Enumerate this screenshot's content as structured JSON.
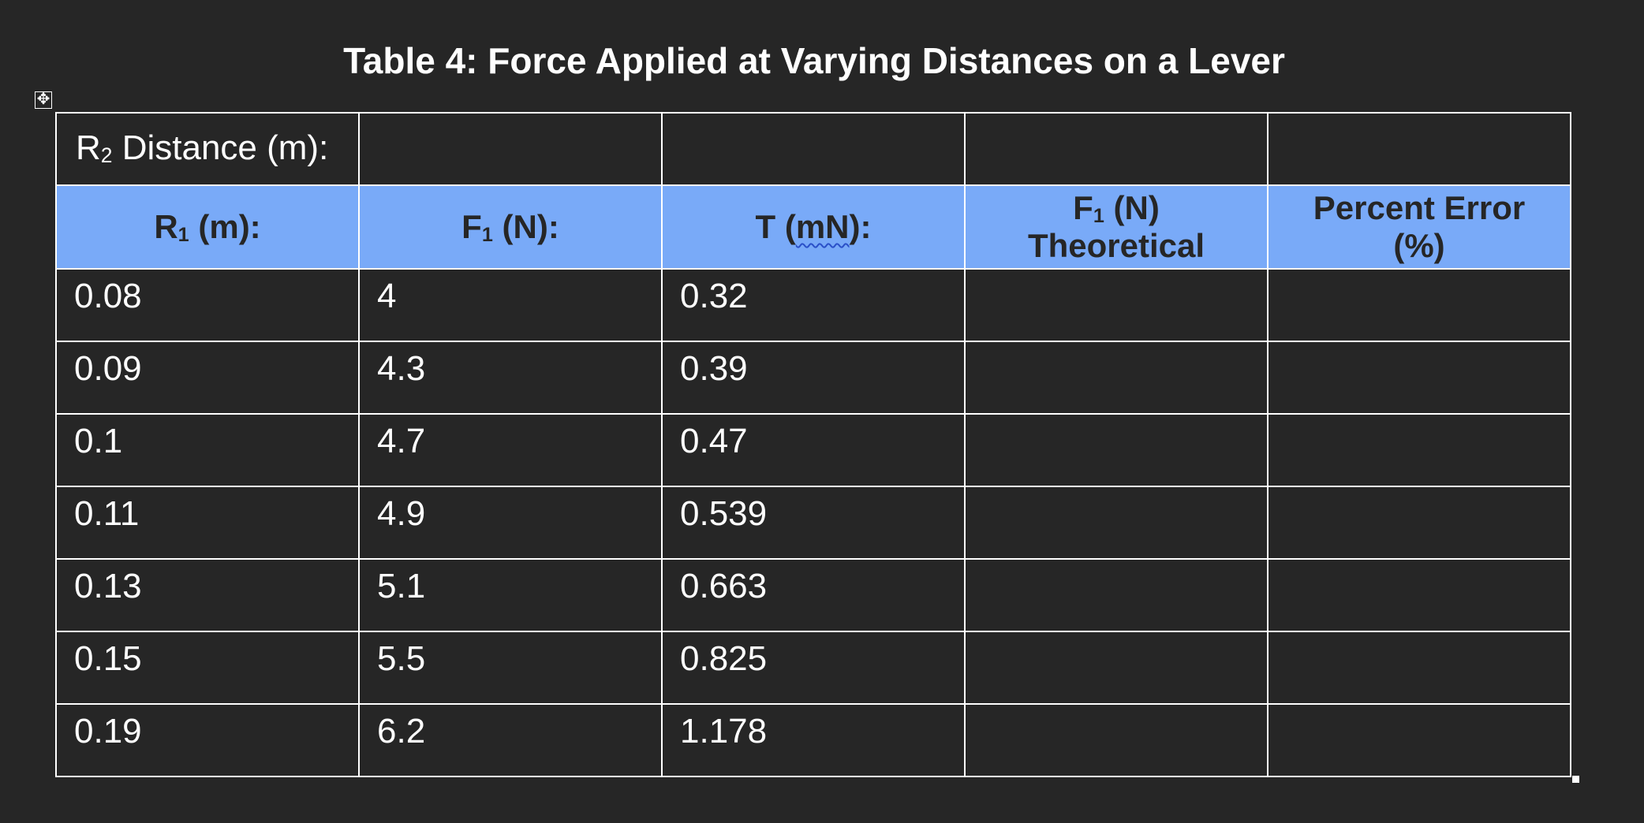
{
  "title": "Table 4: Force Applied at Varying Distances on a Lever",
  "r2_row": {
    "label_main": "R",
    "label_sub": "2",
    "label_rest": " Distance (m):"
  },
  "headers": {
    "r1": {
      "main": "R",
      "sub": "1",
      "rest": " (m):"
    },
    "f1": {
      "main": "F",
      "sub": "1",
      "rest": " (N):"
    },
    "t": {
      "pre": "T (",
      "squiggle": "mN",
      "post": "):"
    },
    "f1_theoretical": {
      "main": "F",
      "sub": "1",
      "rest": " (N)",
      "line2": "Theoretical"
    },
    "percent_error": {
      "line1": "Percent Error",
      "line2": "(%)"
    }
  },
  "rows": [
    {
      "r1": "0.08",
      "f1": "4",
      "t": "0.32",
      "f1_theoretical": "",
      "percent_error": ""
    },
    {
      "r1": "0.09",
      "f1": "4.3",
      "t": "0.39",
      "f1_theoretical": "",
      "percent_error": ""
    },
    {
      "r1": "0.1",
      "f1": "4.7",
      "t": "0.47",
      "f1_theoretical": "",
      "percent_error": ""
    },
    {
      "r1": "0.11",
      "f1": "4.9",
      "t": "0.539",
      "f1_theoretical": "",
      "percent_error": ""
    },
    {
      "r1": "0.13",
      "f1": "5.1",
      "t": "0.663",
      "f1_theoretical": "",
      "percent_error": ""
    },
    {
      "r1": "0.15",
      "f1": "5.5",
      "t": "0.825",
      "f1_theoretical": "",
      "percent_error": ""
    },
    {
      "r1": "0.19",
      "f1": "6.2",
      "t": "1.178",
      "f1_theoretical": "",
      "percent_error": ""
    }
  ],
  "colors": {
    "background": "#262626",
    "header_fill": "#79aaf8",
    "grid": "#ffffff",
    "spellcheck_underline": "#2a50c8"
  },
  "icons": {
    "move_handle": "four-arrow-move-icon",
    "resize_handle": "resize-square-icon"
  }
}
